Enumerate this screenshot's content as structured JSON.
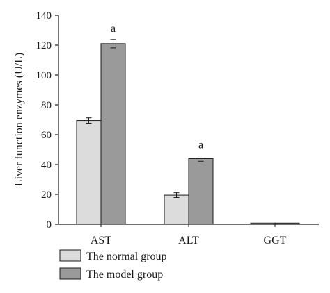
{
  "chart_data": {
    "type": "bar",
    "title": "",
    "xlabel": "",
    "ylabel": "Liver function enzymes (U/L)",
    "ylim": [
      0,
      140
    ],
    "yticks": [
      0,
      20,
      40,
      60,
      80,
      100,
      120,
      140
    ],
    "grid": false,
    "legend_position": "bottom-left",
    "categories": [
      "AST",
      "ALT",
      "GGT"
    ],
    "series": [
      {
        "name": "The normal group",
        "color": "#dcdcdc",
        "values": [
          69.5,
          19.5,
          0.8
        ],
        "errors": [
          1.8,
          1.6,
          0.2
        ]
      },
      {
        "name": "The model group",
        "color": "#9a9a9a",
        "values": [
          121,
          44,
          0.8
        ],
        "errors": [
          2.8,
          1.8,
          0.2
        ]
      }
    ],
    "annotations": [
      {
        "category": "AST",
        "series": "The model group",
        "text": "a"
      },
      {
        "category": "ALT",
        "series": "The model group",
        "text": "a"
      }
    ]
  }
}
